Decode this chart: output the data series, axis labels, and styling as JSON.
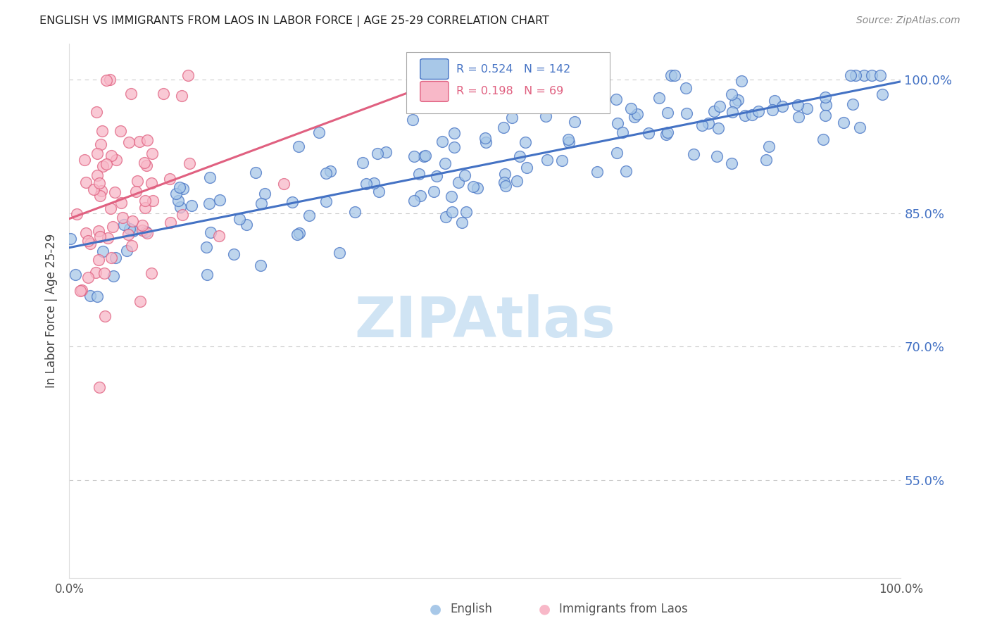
{
  "title": "ENGLISH VS IMMIGRANTS FROM LAOS IN LABOR FORCE | AGE 25-29 CORRELATION CHART",
  "source": "Source: ZipAtlas.com",
  "ylabel": "In Labor Force | Age 25-29",
  "yticks": [
    0.55,
    0.7,
    0.85,
    1.0
  ],
  "ytick_labels": [
    "55.0%",
    "70.0%",
    "85.0%",
    "100.0%"
  ],
  "english_R": 0.524,
  "english_N": 142,
  "laos_R": 0.198,
  "laos_N": 69,
  "english_color": "#A8C8E8",
  "laos_color": "#F8B8C8",
  "english_line_color": "#4472C4",
  "laos_line_color": "#E06080",
  "legend_english": "English",
  "legend_laos": "Immigrants from Laos",
  "watermark": "ZIPAtlas",
  "watermark_color": "#D0E4F4",
  "background_color": "#FFFFFF",
  "grid_color": "#CCCCCC",
  "title_color": "#222222",
  "right_axis_color": "#4472C4",
  "ymin": 0.44,
  "ymax": 1.04
}
